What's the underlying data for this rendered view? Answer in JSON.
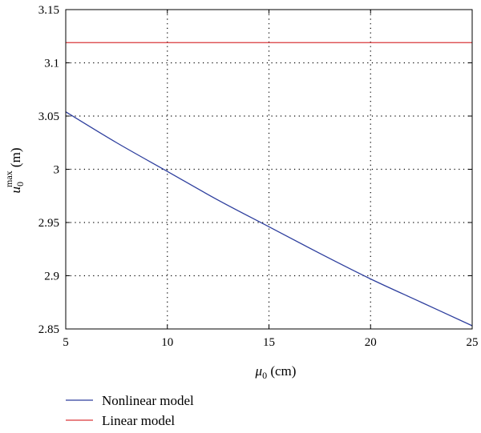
{
  "chart_data": {
    "type": "line",
    "xlabel": {
      "symbol": "μ",
      "subscript": "0",
      "unit": " (cm)"
    },
    "ylabel": {
      "symbol": "u",
      "subscript": "0",
      "superscript": "max",
      "unit": " (m)"
    },
    "xlim": [
      5,
      25
    ],
    "ylim": [
      2.85,
      3.15
    ],
    "xticks": [
      "5",
      "10",
      "15",
      "20",
      "25"
    ],
    "yticks": [
      "2.85",
      "2.9",
      "2.95",
      "3",
      "3.05",
      "3.1",
      "3.15"
    ],
    "grid": true,
    "legend_position": "bottom-left, below plot",
    "series": [
      {
        "name": "Nonlinear model",
        "color": "#2e3f9e",
        "x": [
          5,
          7.5,
          10,
          12.5,
          15,
          17.5,
          20,
          22.5,
          25
        ],
        "y": [
          3.054,
          3.025,
          2.998,
          2.971,
          2.946,
          2.921,
          2.897,
          2.875,
          2.853
        ]
      },
      {
        "name": "Linear model",
        "color": "#d9383a",
        "x": [
          5,
          25
        ],
        "y": [
          3.119,
          3.119
        ]
      }
    ]
  }
}
